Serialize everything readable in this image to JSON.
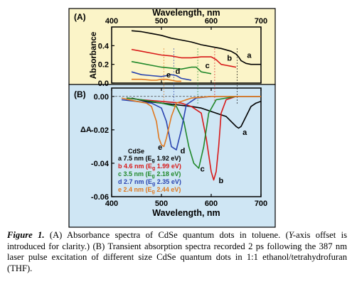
{
  "panel_a": {
    "label": "(A)",
    "top_axis_label": "Wavelength, nm",
    "y_axis_label": "Absorbance"
  },
  "panel_b": {
    "label": "(B)",
    "y_axis_label": "ΔA",
    "bottom_axis_label": "Wavelength, nm",
    "legend_title": "CdSe"
  },
  "colors": {
    "panel_a_bg": "#fbf4c8",
    "panel_b_bg": "#cfe6f4",
    "a": "#000000",
    "b": "#d81818",
    "c": "#20882a",
    "d": "#2a44b0",
    "e": "#e0781e"
  },
  "caption": {
    "label": "Figure 1.",
    "text_1": " (A) Absorbance spectra of CdSe quantum dots in toluene. (",
    "italic_y": "Y-",
    "text_2": "axis offset is introduced for clarity.) (B) Transient absorption spectra recorded 2 ps following the 387 nm laser pulse excitation of different size CdSe quantum dots in 1:1 ethanol/tetrahydrofuran (THF)."
  },
  "chart_data": [
    {
      "type": "line",
      "panel": "A",
      "title": "",
      "xlabel": "Wavelength, nm",
      "ylabel": "Absorbance",
      "xlim": [
        400,
        700
      ],
      "ylim": [
        0,
        0.6
      ],
      "x_ticks": [
        400,
        500,
        600,
        700
      ],
      "y_ticks": [
        0.0,
        0.2,
        0.4
      ],
      "series": [
        {
          "name": "a",
          "x": [
            440,
            460,
            480,
            500,
            520,
            540,
            560,
            580,
            600,
            620,
            640,
            650,
            655,
            660,
            670,
            680,
            690,
            700
          ],
          "y": [
            0.56,
            0.55,
            0.53,
            0.51,
            0.48,
            0.46,
            0.44,
            0.41,
            0.39,
            0.37,
            0.34,
            0.31,
            0.28,
            0.24,
            0.21,
            0.2,
            0.2,
            0.2
          ]
        },
        {
          "name": "b",
          "x": [
            440,
            460,
            480,
            500,
            520,
            540,
            560,
            580,
            600,
            610,
            620,
            630,
            640,
            650
          ],
          "y": [
            0.36,
            0.34,
            0.32,
            0.3,
            0.29,
            0.27,
            0.27,
            0.28,
            0.28,
            0.25,
            0.2,
            0.19,
            0.18,
            0.17
          ]
        },
        {
          "name": "c",
          "x": [
            440,
            460,
            480,
            500,
            520,
            540,
            560,
            570,
            580,
            590,
            600
          ],
          "y": [
            0.23,
            0.21,
            0.19,
            0.17,
            0.16,
            0.15,
            0.17,
            0.17,
            0.12,
            0.11,
            0.1
          ]
        },
        {
          "name": "d",
          "x": [
            440,
            460,
            480,
            500,
            510,
            520,
            530,
            540,
            550,
            560
          ],
          "y": [
            0.12,
            0.09,
            0.08,
            0.07,
            0.08,
            0.09,
            0.08,
            0.05,
            0.04,
            0.03
          ]
        },
        {
          "name": "e",
          "x": [
            440,
            460,
            480,
            490,
            500,
            510,
            520,
            530,
            540
          ],
          "y": [
            0.04,
            0.04,
            0.03,
            0.03,
            0.04,
            0.04,
            0.03,
            0.02,
            0.02
          ]
        }
      ]
    },
    {
      "type": "line",
      "panel": "B",
      "title": "",
      "xlabel": "Wavelength, nm",
      "ylabel": "ΔA",
      "xlim": [
        400,
        700
      ],
      "ylim": [
        -0.06,
        0.005
      ],
      "x_ticks": [
        400,
        500,
        600,
        700
      ],
      "y_ticks": [
        0.0,
        -0.02,
        -0.04,
        -0.06
      ],
      "legend_position": "left",
      "series": [
        {
          "name": "a",
          "label": "a 7.5 nm (E_g 1.92 eV)",
          "x": [
            440,
            470,
            500,
            530,
            560,
            580,
            600,
            620,
            630,
            640,
            650,
            655,
            660,
            670,
            680,
            690,
            700
          ],
          "y": [
            -0.001,
            -0.003,
            -0.004,
            -0.005,
            -0.006,
            -0.007,
            -0.009,
            -0.011,
            -0.012,
            -0.015,
            -0.018,
            -0.019,
            -0.018,
            -0.012,
            -0.006,
            -0.004,
            -0.003
          ]
        },
        {
          "name": "b",
          "label": "b 4.6 nm (E_g 1.99 eV)",
          "x": [
            430,
            460,
            500,
            540,
            560,
            580,
            590,
            600,
            605,
            610,
            615,
            620,
            630,
            650,
            700
          ],
          "y": [
            -0.001,
            -0.002,
            -0.003,
            -0.004,
            -0.006,
            -0.01,
            -0.025,
            -0.045,
            -0.05,
            -0.045,
            -0.03,
            -0.01,
            -0.002,
            0.0,
            0.0
          ]
        },
        {
          "name": "c",
          "label": "c 3.5 nm (E_g 2.18 eV)",
          "x": [
            430,
            460,
            500,
            530,
            545,
            555,
            565,
            575,
            585,
            595,
            610,
            650,
            700
          ],
          "y": [
            -0.001,
            -0.002,
            -0.004,
            -0.006,
            -0.015,
            -0.03,
            -0.04,
            -0.043,
            -0.03,
            -0.01,
            -0.002,
            0.0,
            0.0
          ]
        },
        {
          "name": "d",
          "label": "d 2.7 nm (E_g 2.35 eV)",
          "x": [
            420,
            450,
            480,
            500,
            510,
            520,
            530,
            540,
            550,
            570,
            600,
            650,
            700
          ],
          "y": [
            -0.002,
            -0.003,
            -0.004,
            -0.007,
            -0.015,
            -0.03,
            -0.032,
            -0.02,
            -0.005,
            -0.001,
            0.0,
            0.0,
            0.0
          ]
        },
        {
          "name": "e",
          "label": "e 2.4 nm (E_g 2.44 eV)",
          "x": [
            420,
            450,
            470,
            480,
            490,
            495,
            500,
            505,
            510,
            520,
            530,
            560,
            600,
            700
          ],
          "y": [
            -0.001,
            -0.003,
            -0.004,
            -0.006,
            -0.015,
            -0.025,
            -0.029,
            -0.03,
            -0.025,
            -0.012,
            -0.004,
            -0.001,
            0.0,
            0.0
          ]
        }
      ]
    }
  ],
  "curve_labels": [
    "a",
    "b",
    "c",
    "d",
    "e"
  ]
}
